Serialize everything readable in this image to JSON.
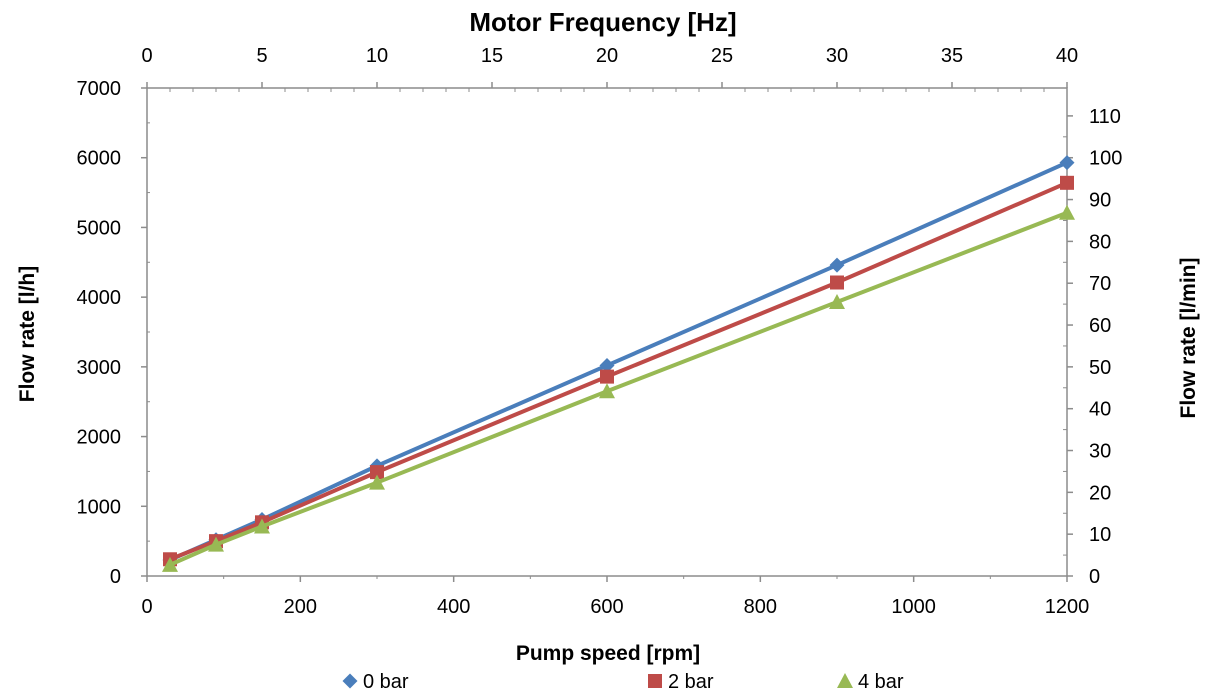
{
  "chart_data": {
    "type": "line",
    "title": "",
    "x": [
      30,
      90,
      150,
      300,
      600,
      900,
      1200
    ],
    "series": [
      {
        "name": "0 bar",
        "marker": "diamond",
        "color": "#4a7ebb",
        "values": [
          230,
          520,
          810,
          1580,
          3020,
          4460,
          5930
        ]
      },
      {
        "name": "2 bar",
        "marker": "square",
        "color": "#be4b48",
        "values": [
          240,
          500,
          770,
          1490,
          2860,
          4210,
          5640
        ]
      },
      {
        "name": "4 bar",
        "marker": "triangle",
        "color": "#98b954",
        "values": [
          160,
          450,
          710,
          1340,
          2650,
          3930,
          5210
        ]
      }
    ],
    "xlabel": "Pump speed [rpm]",
    "xlim": [
      0,
      1200
    ],
    "xticks": [
      "0",
      "200",
      "400",
      "600",
      "800",
      "1000",
      "1200"
    ],
    "ylabel": "Flow rate [l/h]",
    "ylim": [
      0,
      7000
    ],
    "yticks": [
      "0",
      "1000",
      "2000",
      "3000",
      "4000",
      "5000",
      "6000",
      "7000"
    ],
    "x2label": "Motor Frequency [Hz]",
    "x2lim": [
      0,
      40
    ],
    "x2ticks": [
      "0",
      "5",
      "10",
      "15",
      "20",
      "25",
      "30",
      "35",
      "40"
    ],
    "y2label": "Flow rate [l/min]",
    "y2lim": [
      0,
      116.67
    ],
    "y2ticks": [
      "0",
      "10",
      "20",
      "30",
      "40",
      "50",
      "60",
      "70",
      "80",
      "90",
      "100",
      "110"
    ],
    "grid": false,
    "legend_position": "bottom"
  }
}
